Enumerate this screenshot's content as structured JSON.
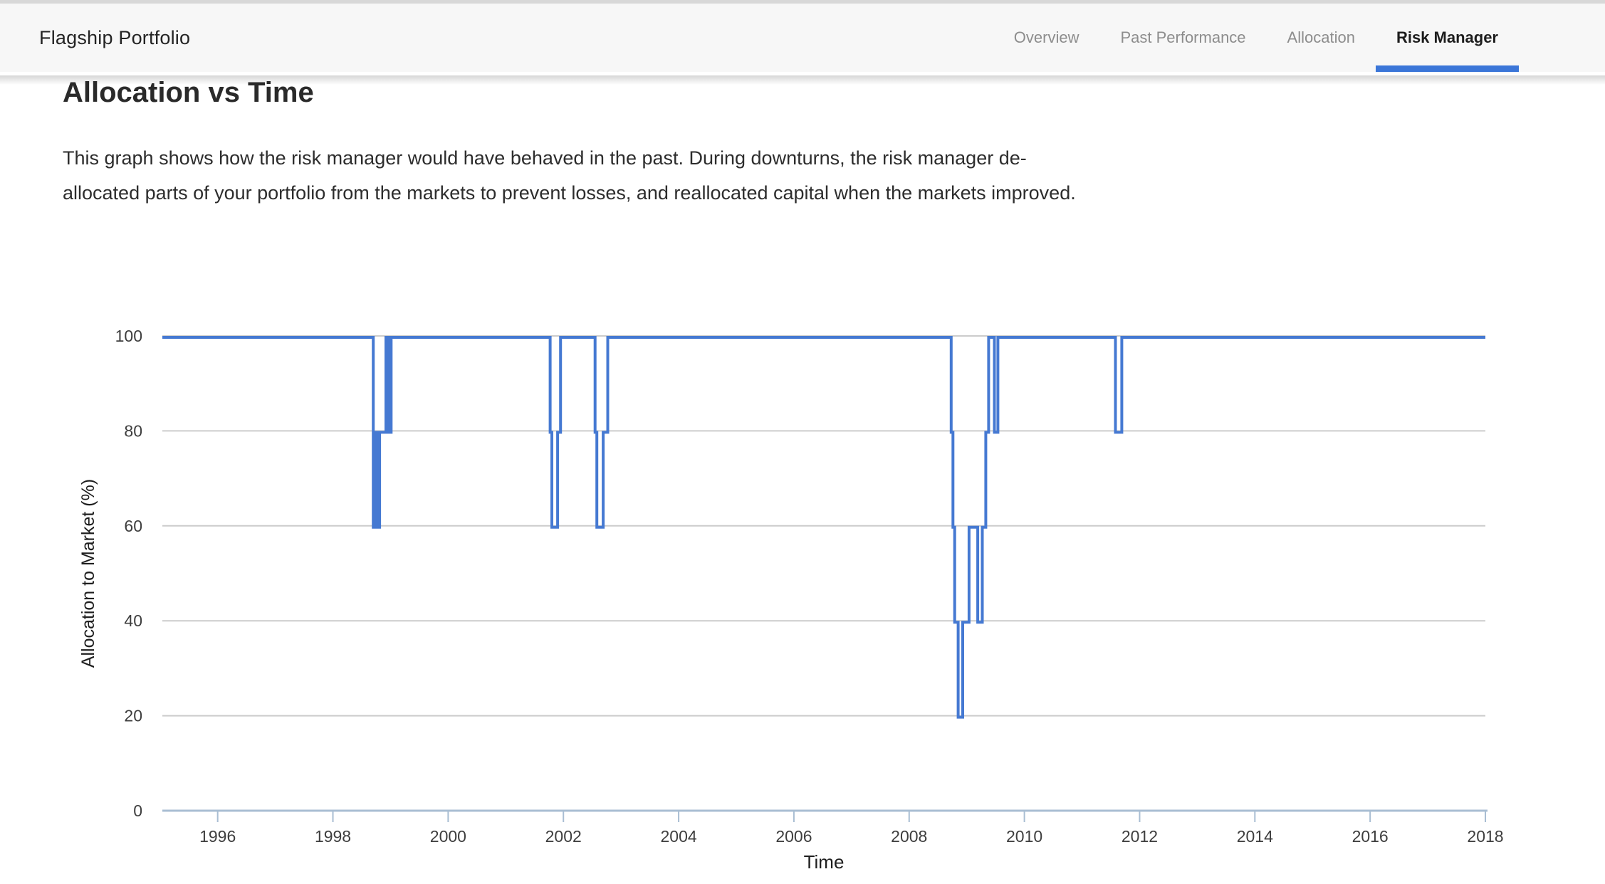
{
  "header": {
    "title": "Flagship Portfolio"
  },
  "nav": {
    "active_color": "#3b76d8",
    "items": [
      {
        "label": "Overview",
        "active": false
      },
      {
        "label": "Past Performance",
        "active": false
      },
      {
        "label": "Allocation",
        "active": false
      },
      {
        "label": "Risk Manager",
        "active": true
      }
    ]
  },
  "main": {
    "heading": "Allocation vs Time",
    "description_lines": [
      "This graph shows how the risk manager would have behaved in the past. During downturns, the risk manager de-",
      "allocated parts of your portfolio from the markets to prevent losses, and reallocated capital when the markets improved."
    ]
  },
  "chart_data": {
    "type": "line",
    "step": "hv",
    "title": "",
    "xlabel": "Time",
    "ylabel": "Allocation to Market (%)",
    "xlim": [
      1995.04,
      2018.0
    ],
    "ylim": [
      0,
      100
    ],
    "x_ticks": [
      1996,
      1998,
      2000,
      2002,
      2004,
      2006,
      2008,
      2010,
      2012,
      2014,
      2016,
      2018
    ],
    "y_ticks": [
      0,
      20,
      40,
      60,
      80,
      100
    ],
    "grid": "horizontal",
    "legend": "none",
    "line_color": "#4579d2",
    "axis_color": "#a9bed3",
    "grid_color": "#cccccc",
    "tick_label_color": "#3e3e3e",
    "axis_title_color": "#1e1e1e",
    "series": [
      {
        "name": "Allocation to Market (%)",
        "points": [
          [
            1995.04,
            100
          ],
          [
            1998.7,
            60
          ],
          [
            1998.73,
            80
          ],
          [
            1998.77,
            60
          ],
          [
            1998.81,
            80
          ],
          [
            1998.92,
            100
          ],
          [
            1998.97,
            80
          ],
          [
            1999.01,
            100
          ],
          [
            2001.77,
            80
          ],
          [
            2001.8,
            60
          ],
          [
            2001.9,
            80
          ],
          [
            2001.95,
            100
          ],
          [
            2002.55,
            80
          ],
          [
            2002.58,
            60
          ],
          [
            2002.69,
            80
          ],
          [
            2002.77,
            100
          ],
          [
            2008.73,
            80
          ],
          [
            2008.76,
            60
          ],
          [
            2008.79,
            40
          ],
          [
            2008.85,
            20
          ],
          [
            2008.93,
            40
          ],
          [
            2009.04,
            60
          ],
          [
            2009.19,
            40
          ],
          [
            2009.27,
            60
          ],
          [
            2009.33,
            80
          ],
          [
            2009.38,
            100
          ],
          [
            2009.48,
            80
          ],
          [
            2009.54,
            100
          ],
          [
            2011.58,
            80
          ],
          [
            2011.69,
            100
          ],
          [
            2018.0,
            100
          ]
        ]
      }
    ]
  }
}
